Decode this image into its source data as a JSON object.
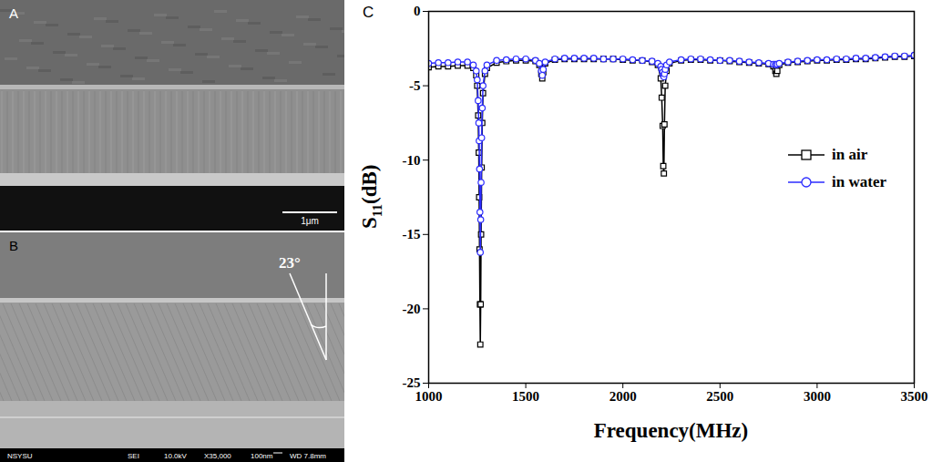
{
  "images": [
    {
      "label": "A",
      "scale_bar": "1μm"
    },
    {
      "label": "B",
      "angle_label": "23°",
      "info_bar": [
        "NSYSU",
        "SEI",
        "10.0kV",
        "X35,000",
        "100nm",
        "WD 7.8mm"
      ]
    }
  ],
  "chart_data": {
    "panel_label": "C",
    "type": "line",
    "x_label": "Frequency(MHz)",
    "y_label": "S11(dB)",
    "x": [
      1000,
      1050,
      1100,
      1150,
      1200,
      1230,
      1245,
      1250,
      1255,
      1258,
      1260,
      1262,
      1264,
      1266,
      1268,
      1270,
      1273,
      1276,
      1280,
      1290,
      1300,
      1350,
      1400,
      1450,
      1500,
      1550,
      1570,
      1580,
      1585,
      1590,
      1600,
      1650,
      1700,
      1750,
      1800,
      1850,
      1900,
      1950,
      2000,
      2050,
      2100,
      2150,
      2180,
      2195,
      2200,
      2205,
      2208,
      2211,
      2214,
      2218,
      2225,
      2240,
      2300,
      2350,
      2400,
      2450,
      2500,
      2550,
      2600,
      2650,
      2700,
      2750,
      2775,
      2785,
      2790,
      2795,
      2805,
      2850,
      2900,
      2950,
      3000,
      3050,
      3100,
      3150,
      3200,
      3250,
      3300,
      3350,
      3400,
      3450,
      3500
    ],
    "xlim": [
      1000,
      3500
    ],
    "xticks": [
      1000,
      1500,
      2000,
      2500,
      3000,
      3500
    ],
    "ylim": [
      -25,
      0
    ],
    "yticks": [
      -25,
      -20,
      -15,
      -10,
      -5,
      0
    ],
    "legend": "upper right",
    "series": [
      {
        "name": "in air",
        "color": "#000000",
        "marker": "square",
        "values": [
          -3.75,
          -3.7,
          -3.7,
          -3.65,
          -3.65,
          -3.8,
          -4.3,
          -5.0,
          -7.0,
          -9.5,
          -12.5,
          -16.0,
          -19.7,
          -22.4,
          -19.7,
          -15.0,
          -10.5,
          -7.5,
          -5.5,
          -4.2,
          -3.8,
          -3.45,
          -3.35,
          -3.3,
          -3.3,
          -3.35,
          -3.6,
          -4.2,
          -4.5,
          -4.1,
          -3.5,
          -3.25,
          -3.2,
          -3.2,
          -3.2,
          -3.2,
          -3.2,
          -3.2,
          -3.25,
          -3.3,
          -3.3,
          -3.4,
          -3.6,
          -4.5,
          -5.8,
          -7.7,
          -10.4,
          -10.9,
          -7.6,
          -5.0,
          -4.0,
          -3.5,
          -3.3,
          -3.25,
          -3.25,
          -3.3,
          -3.3,
          -3.35,
          -3.4,
          -3.45,
          -3.5,
          -3.55,
          -3.7,
          -4.0,
          -4.2,
          -4.0,
          -3.6,
          -3.45,
          -3.4,
          -3.35,
          -3.3,
          -3.3,
          -3.25,
          -3.25,
          -3.2,
          -3.2,
          -3.15,
          -3.1,
          -3.05,
          -3.05,
          -3.0
        ]
      },
      {
        "name": "in water",
        "color": "#2b2bff",
        "marker": "circle",
        "values": [
          -3.5,
          -3.45,
          -3.45,
          -3.4,
          -3.4,
          -3.6,
          -4.0,
          -4.6,
          -6.0,
          -7.5,
          -8.7,
          -10.6,
          -13.5,
          -16.2,
          -14.0,
          -11.5,
          -8.5,
          -6.5,
          -5.0,
          -4.0,
          -3.6,
          -3.3,
          -3.25,
          -3.2,
          -3.2,
          -3.3,
          -3.5,
          -4.0,
          -4.3,
          -3.9,
          -3.4,
          -3.2,
          -3.15,
          -3.15,
          -3.15,
          -3.15,
          -3.2,
          -3.2,
          -3.2,
          -3.25,
          -3.3,
          -3.35,
          -3.5,
          -3.7,
          -3.9,
          -4.1,
          -4.3,
          -4.4,
          -4.2,
          -3.9,
          -3.6,
          -3.4,
          -3.25,
          -3.2,
          -3.2,
          -3.25,
          -3.3,
          -3.3,
          -3.35,
          -3.4,
          -3.45,
          -3.5,
          -3.55,
          -3.55,
          -3.6,
          -3.55,
          -3.5,
          -3.4,
          -3.35,
          -3.3,
          -3.25,
          -3.25,
          -3.2,
          -3.2,
          -3.15,
          -3.15,
          -3.1,
          -3.05,
          -3.0,
          -3.0,
          -2.95
        ]
      }
    ]
  }
}
